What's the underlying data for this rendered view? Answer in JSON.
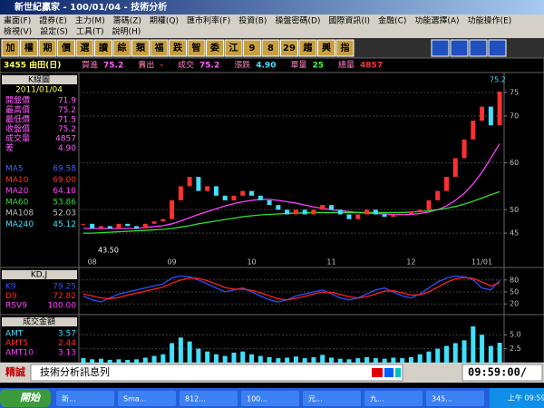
{
  "window": {
    "title": "新世紀贏家 - 100/01/04 - 技術分析"
  },
  "menu": {
    "row1": [
      "畫面(F)",
      "證券(E)",
      "主力(M)",
      "籌碼(Z)",
      "期權(Q)",
      "匯市利率(F)",
      "投資(B)",
      "操盤密碼(D)",
      "國際資訊(I)",
      "金融(C)",
      "功能選擇(A)",
      "功能操作(E)"
    ],
    "row2": [
      "檢視(V)",
      "設定(S)",
      "工具(T)",
      "說明(H)"
    ]
  },
  "toolbar": [
    "加",
    "權",
    "期",
    "價",
    "選",
    "讀",
    "綜",
    "類",
    "福",
    "跌",
    "智",
    "委",
    "江",
    "9",
    "8",
    "29",
    "趨",
    "興",
    "指"
  ],
  "quote": {
    "stock": "3455 由田(日)",
    "items": [
      {
        "label": "買進",
        "value": "75.2"
      },
      {
        "label": "賣出",
        "value": "-"
      },
      {
        "label": "成交",
        "value": "75.2"
      },
      {
        "label": "漲跌",
        "value": "4.90"
      },
      {
        "label": "單量",
        "value": "25"
      },
      {
        "label": "總量",
        "value": "4857"
      }
    ]
  },
  "chart_data": [
    {
      "type": "line",
      "title": "K線圖",
      "date": "2011/01/04",
      "info": [
        {
          "label": "開盤價",
          "value": "71.9"
        },
        {
          "label": "最高價",
          "value": "75.2"
        },
        {
          "label": "最低價",
          "value": "71.5"
        },
        {
          "label": "收盤價",
          "value": "75.2"
        },
        {
          "label": "成交量",
          "value": "4857"
        },
        {
          "label": "差",
          "value": "4.90"
        }
      ],
      "categories": [
        null,
        "08",
        null,
        null,
        null,
        null,
        null,
        null,
        null,
        null,
        "09",
        null,
        null,
        null,
        null,
        null,
        null,
        null,
        null,
        "10",
        null,
        null,
        null,
        null,
        null,
        null,
        null,
        null,
        "11",
        null,
        null,
        null,
        null,
        null,
        null,
        null,
        null,
        "12",
        null,
        null,
        null,
        null,
        null,
        null,
        null,
        "11/01",
        null,
        null
      ],
      "values": [
        47,
        46,
        46.5,
        46,
        47,
        46.5,
        46,
        47,
        47.5,
        48,
        52,
        55,
        57,
        54,
        55,
        53,
        52,
        53,
        54,
        53,
        52,
        51,
        50,
        49,
        50,
        49,
        50,
        51,
        50,
        49,
        48,
        49,
        50,
        49,
        48.5,
        49,
        49,
        49.5,
        50,
        52,
        54,
        57,
        61,
        65,
        69,
        72,
        68,
        75.2
      ],
      "color": "#ff3030",
      "ma": [
        {
          "name": "MA5",
          "label": "69.58",
          "color": "#4060ff"
        },
        {
          "name": "MA10",
          "label": "69.00",
          "color": "#ff3030"
        },
        {
          "name": "MA20",
          "label": "64.10",
          "color": "#ff40ff",
          "values": [
            46,
            46,
            46,
            46,
            46,
            46,
            46,
            46.2,
            46.4,
            46.6,
            47,
            47.6,
            48.3,
            49,
            49.6,
            50.2,
            50.8,
            51.3,
            51.7,
            52,
            52.2,
            52.2,
            52,
            51.7,
            51.4,
            51,
            50.6,
            50.3,
            50,
            49.8,
            49.6,
            49.4,
            49.3,
            49.2,
            49.1,
            49,
            49,
            49,
            49.2,
            49.5,
            50,
            50.8,
            52,
            53.5,
            55.5,
            58,
            61,
            64.1
          ]
        },
        {
          "name": "MA60",
          "label": "53.86",
          "color": "#30e030",
          "values": [
            45,
            45,
            45.1,
            45.2,
            45.3,
            45.4,
            45.5,
            45.6,
            45.7,
            45.8,
            46,
            46.3,
            46.6,
            47,
            47.3,
            47.6,
            47.9,
            48.2,
            48.5,
            48.7,
            48.9,
            49,
            49.1,
            49.2,
            49.3,
            49.3,
            49.4,
            49.4,
            49.4,
            49.4,
            49.4,
            49.4,
            49.4,
            49.4,
            49.4,
            49.4,
            49.4,
            49.5,
            49.6,
            49.8,
            50,
            50.3,
            50.7,
            51.2,
            51.8,
            52.5,
            53.2,
            53.86
          ]
        },
        {
          "name": "MA108",
          "label": "52.03",
          "color": "#c0c0c0"
        },
        {
          "name": "MA240",
          "label": "45.12",
          "color": "#40e0ff"
        }
      ],
      "annotations": [
        "43.50",
        "75.2"
      ],
      "ylim": [
        40,
        78.5
      ],
      "yticks": [
        45,
        50,
        60,
        70,
        75
      ]
    },
    {
      "type": "line",
      "title": "KD,J",
      "ylim": [
        0,
        100
      ],
      "yticks": [
        20,
        50,
        80
      ],
      "lines": [
        {
          "name": "K9",
          "label": "79.25",
          "color": "#3050ff",
          "values": [
            40,
            30,
            25,
            35,
            45,
            50,
            55,
            60,
            65,
            70,
            85,
            90,
            88,
            80,
            70,
            60,
            50,
            55,
            60,
            50,
            40,
            30,
            25,
            30,
            40,
            45,
            50,
            55,
            45,
            35,
            30,
            35,
            45,
            55,
            60,
            50,
            40,
            35,
            45,
            60,
            75,
            85,
            90,
            88,
            80,
            60,
            55,
            79.25
          ]
        },
        {
          "name": "D9",
          "label": "72.82",
          "color": "#ff2020",
          "values": [
            45,
            40,
            35,
            33,
            36,
            42,
            47,
            52,
            57,
            62,
            72,
            80,
            85,
            84,
            78,
            70,
            61,
            57,
            57,
            54,
            48,
            40,
            33,
            30,
            34,
            39,
            45,
            50,
            49,
            44,
            38,
            35,
            38,
            45,
            52,
            53,
            48,
            42,
            43,
            50,
            62,
            74,
            83,
            86,
            84,
            75,
            65,
            72.82
          ]
        },
        {
          "name": "RSV9",
          "label": "100.00",
          "color": "#ff40ff"
        }
      ]
    },
    {
      "type": "bar",
      "title": "成交金額",
      "ylim": [
        0,
        7.8
      ],
      "yticks": [
        {
          "value": 2.5,
          "label": "2.5"
        },
        {
          "value": 5,
          "label": "5.0"
        }
      ],
      "lines": [
        {
          "name": "AMT",
          "label": "3.57",
          "color": "#40e0ff",
          "values": [
            0.8,
            0.6,
            0.7,
            0.5,
            0.6,
            0.5,
            0.6,
            0.9,
            1.2,
            1.5,
            3.5,
            4.5,
            3.8,
            2.5,
            2,
            1.5,
            1.2,
            1.8,
            2,
            1.5,
            1.2,
            1,
            0.8,
            0.9,
            1.1,
            0.8,
            1,
            1.4,
            0.9,
            0.7,
            0.6,
            0.8,
            1,
            0.8,
            0.7,
            0.9,
            0.8,
            1,
            1.5,
            2,
            2.5,
            3,
            3.5,
            4,
            6.5,
            5,
            3,
            3.57
          ]
        },
        {
          "name": "AMT5",
          "label": "2.44",
          "color": "#ff3030"
        },
        {
          "name": "AMT10",
          "label": "3.13",
          "color": "#ff40ff"
        }
      ]
    }
  ],
  "status": {
    "brand": "精誠",
    "message": "技術分析訊息列",
    "time": "09:59:00/"
  },
  "taskbar": {
    "start": "開始",
    "tasks": [
      "新...",
      "Sma...",
      "812...",
      "100...",
      "元...",
      "九...",
      "345..."
    ],
    "clock": "上午 09:59"
  }
}
